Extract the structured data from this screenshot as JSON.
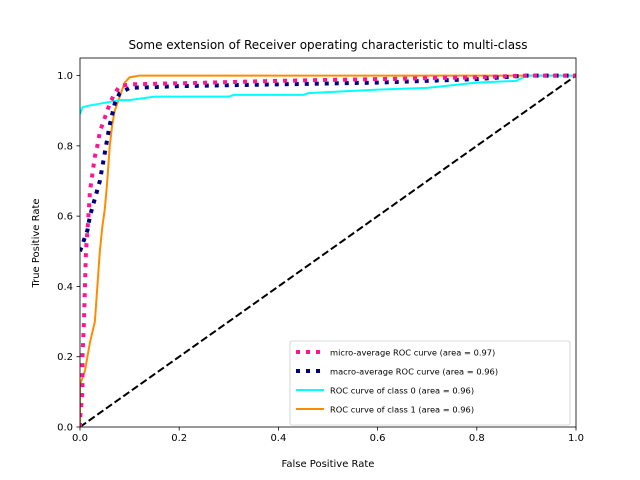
{
  "chart_data": {
    "type": "line",
    "title": "Some extension of Receiver operating characteristic to multi-class",
    "xlabel": "False Positive Rate",
    "ylabel": "True Positive Rate",
    "xlim": [
      0.0,
      1.0
    ],
    "ylim": [
      0.0,
      1.05
    ],
    "xticks": [
      "0.0",
      "0.2",
      "0.4",
      "0.6",
      "0.8",
      "1.0"
    ],
    "yticks": [
      "0.0",
      "0.2",
      "0.4",
      "0.6",
      "0.8",
      "1.0"
    ],
    "grid": false,
    "legend_position": "lower-right",
    "series": [
      {
        "name": "micro-average ROC curve (area = 0.97)",
        "color": "#ff1493",
        "style": "dotted",
        "points": [
          [
            0,
            0
          ],
          [
            0,
            0.02
          ],
          [
            0.005,
            0.1
          ],
          [
            0.005,
            0.2
          ],
          [
            0.008,
            0.3
          ],
          [
            0.01,
            0.4
          ],
          [
            0.012,
            0.5
          ],
          [
            0.015,
            0.56
          ],
          [
            0.018,
            0.62
          ],
          [
            0.02,
            0.67
          ],
          [
            0.025,
            0.72
          ],
          [
            0.03,
            0.77
          ],
          [
            0.035,
            0.8
          ],
          [
            0.04,
            0.84
          ],
          [
            0.05,
            0.88
          ],
          [
            0.06,
            0.92
          ],
          [
            0.07,
            0.95
          ],
          [
            0.08,
            0.97
          ],
          [
            0.1,
            0.975
          ],
          [
            0.2,
            0.978
          ],
          [
            0.4,
            0.985
          ],
          [
            0.6,
            0.99
          ],
          [
            0.8,
            0.995
          ],
          [
            0.9,
            1.0
          ],
          [
            1,
            1.0
          ]
        ]
      },
      {
        "name": "macro-average ROC curve (area = 0.96)",
        "color": "#000080",
        "style": "dotted",
        "points": [
          [
            0,
            0.5
          ],
          [
            0.005,
            0.52
          ],
          [
            0.01,
            0.54
          ],
          [
            0.015,
            0.56
          ],
          [
            0.02,
            0.6
          ],
          [
            0.03,
            0.65
          ],
          [
            0.04,
            0.7
          ],
          [
            0.05,
            0.78
          ],
          [
            0.06,
            0.86
          ],
          [
            0.07,
            0.92
          ],
          [
            0.08,
            0.95
          ],
          [
            0.1,
            0.965
          ],
          [
            0.2,
            0.97
          ],
          [
            0.4,
            0.975
          ],
          [
            0.6,
            0.98
          ],
          [
            0.8,
            0.99
          ],
          [
            0.9,
            1.0
          ],
          [
            1,
            1.0
          ]
        ]
      },
      {
        "name": "ROC curve of class 0 (area = 0.96)",
        "color": "#00ffff",
        "style": "solid",
        "points": [
          [
            0,
            0.89
          ],
          [
            0.005,
            0.91
          ],
          [
            0.02,
            0.915
          ],
          [
            0.04,
            0.92
          ],
          [
            0.06,
            0.925
          ],
          [
            0.08,
            0.93
          ],
          [
            0.1,
            0.93
          ],
          [
            0.15,
            0.94
          ],
          [
            0.3,
            0.94
          ],
          [
            0.31,
            0.945
          ],
          [
            0.45,
            0.945
          ],
          [
            0.46,
            0.95
          ],
          [
            0.6,
            0.96
          ],
          [
            0.7,
            0.965
          ],
          [
            0.8,
            0.98
          ],
          [
            0.88,
            0.985
          ],
          [
            0.9,
            1.0
          ],
          [
            1,
            1.0
          ]
        ]
      },
      {
        "name": "ROC curve of class 1 (area = 0.96)",
        "color": "#ff8c00",
        "style": "solid",
        "points": [
          [
            0,
            0
          ],
          [
            0,
            0.12
          ],
          [
            0.005,
            0.14
          ],
          [
            0.01,
            0.16
          ],
          [
            0.015,
            0.2
          ],
          [
            0.02,
            0.24
          ],
          [
            0.025,
            0.27
          ],
          [
            0.03,
            0.3
          ],
          [
            0.035,
            0.4
          ],
          [
            0.04,
            0.5
          ],
          [
            0.045,
            0.57
          ],
          [
            0.05,
            0.62
          ],
          [
            0.055,
            0.7
          ],
          [
            0.06,
            0.8
          ],
          [
            0.065,
            0.86
          ],
          [
            0.07,
            0.9
          ],
          [
            0.08,
            0.94
          ],
          [
            0.09,
            0.98
          ],
          [
            0.1,
            0.995
          ],
          [
            0.12,
            1.0
          ],
          [
            1,
            1.0
          ]
        ]
      },
      {
        "name": "",
        "color": "#000000",
        "style": "dashed",
        "points": [
          [
            0,
            0
          ],
          [
            1,
            1
          ]
        ]
      }
    ]
  }
}
